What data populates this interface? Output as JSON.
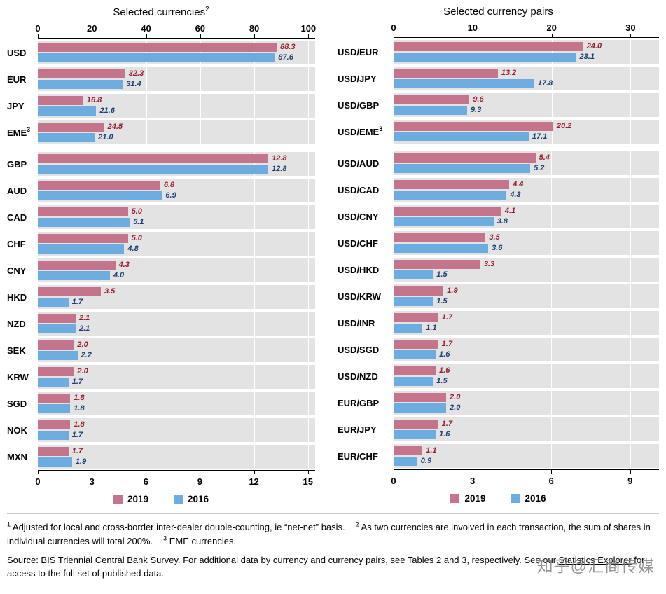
{
  "watermark": "知乎@汇商传媒",
  "colors": {
    "bar_2019": "#c4758b",
    "bar_2016": "#6cacdf",
    "value_2019": "#9b1c30",
    "value_2016": "#1d3e74",
    "panel_bg": "#e3e3e3"
  },
  "chart_data": [
    {
      "type": "bar",
      "orientation": "horizontal",
      "title": "Selected currencies",
      "title_footnote": "2",
      "legend": [
        "2019",
        "2016"
      ],
      "legend_position": "bottom",
      "grid": true,
      "panels": [
        {
          "axis_position": "top",
          "ticks": [
            0,
            20,
            40,
            60,
            80,
            100
          ],
          "axis_end": 102.5,
          "categories": [
            "USD",
            "EUR",
            "JPY",
            "EME"
          ],
          "category_sup": {
            "EME": "3"
          },
          "series": [
            {
              "name": "2019",
              "values": [
                88.3,
                32.3,
                16.8,
                24.5
              ]
            },
            {
              "name": "2016",
              "values": [
                87.6,
                31.4,
                21.6,
                21.0
              ]
            }
          ]
        },
        {
          "axis_position": "bottom",
          "ticks": [
            0,
            3,
            6,
            9,
            12,
            15
          ],
          "axis_end": 15.4,
          "categories": [
            "GBP",
            "AUD",
            "CAD",
            "CHF",
            "CNY",
            "HKD",
            "NZD",
            "SEK",
            "KRW",
            "SGD",
            "NOK",
            "MXN"
          ],
          "category_sup": {},
          "series": [
            {
              "name": "2019",
              "values": [
                12.8,
                6.8,
                5.0,
                5.0,
                4.3,
                3.5,
                2.1,
                2.0,
                2.0,
                1.8,
                1.8,
                1.7
              ]
            },
            {
              "name": "2016",
              "values": [
                12.8,
                6.9,
                5.1,
                4.8,
                4.0,
                1.7,
                2.1,
                2.2,
                1.7,
                1.8,
                1.7,
                1.9
              ]
            }
          ]
        }
      ]
    },
    {
      "type": "bar",
      "orientation": "horizontal",
      "title": "Selected currency pairs",
      "title_footnote": "",
      "legend": [
        "2019",
        "2016"
      ],
      "legend_position": "bottom",
      "grid": true,
      "panels": [
        {
          "axis_position": "top",
          "ticks": [
            0,
            10,
            20,
            30
          ],
          "axis_end": 33.6,
          "categories": [
            "USD/EUR",
            "USD/JPY",
            "USD/GBP",
            "USD/EME"
          ],
          "category_sup": {
            "USD/EME": "3"
          },
          "series": [
            {
              "name": "2019",
              "values": [
                24.0,
                13.2,
                9.6,
                20.2
              ]
            },
            {
              "name": "2016",
              "values": [
                23.1,
                17.8,
                9.3,
                17.1
              ]
            }
          ]
        },
        {
          "axis_position": "bottom",
          "ticks": [
            0,
            3,
            6,
            9
          ],
          "axis_end": 10.1,
          "categories": [
            "USD/AUD",
            "USD/CAD",
            "USD/CNY",
            "USD/CHF",
            "USD/HKD",
            "USD/KRW",
            "USD/INR",
            "USD/SGD",
            "USD/NZD",
            "EUR/GBP",
            "EUR/JPY",
            "EUR/CHF"
          ],
          "category_sup": {},
          "series": [
            {
              "name": "2019",
              "values": [
                5.4,
                4.4,
                4.1,
                3.5,
                3.3,
                1.9,
                1.7,
                1.7,
                1.6,
                2.0,
                1.7,
                1.1
              ]
            },
            {
              "name": "2016",
              "values": [
                5.2,
                4.3,
                3.8,
                3.6,
                1.5,
                1.5,
                1.1,
                1.6,
                1.5,
                2.0,
                1.6,
                0.9
              ]
            }
          ]
        }
      ]
    }
  ],
  "footnotes": [
    {
      "sup": "1",
      "text": "Adjusted for local and cross-border inter-dealer double-counting, ie “net-net” basis."
    },
    {
      "sup": "2",
      "text": "As two currencies are involved in each transaction, the sum of shares in individual currencies will total 200%."
    },
    {
      "sup": "3",
      "text": "EME currencies."
    }
  ],
  "source": {
    "pre": "Source: BIS Triennial Central Bank Survey. For additional data by currency and currency pairs, see Tables 2 and 3, respectively. See our ",
    "link": "Statistics Explorer",
    "post": " for access to the full set of published data."
  }
}
